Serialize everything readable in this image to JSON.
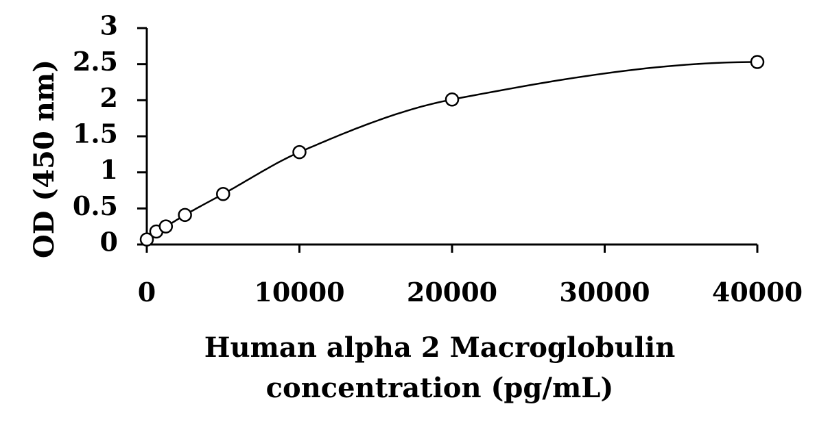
{
  "chart_data": {
    "type": "scatter",
    "title": "",
    "xlabel": [
      "Human alpha 2 Macroglobulin",
      "concentration (pg/mL)"
    ],
    "ylabel": "OD (450 nm)",
    "xlim": [
      0,
      40000
    ],
    "ylim": [
      0,
      3
    ],
    "xticks": [
      0,
      10000,
      20000,
      30000,
      40000
    ],
    "xtick_labels": [
      "0",
      "10000",
      "20000",
      "30000",
      "40000"
    ],
    "yticks": [
      0,
      0.5,
      1,
      1.5,
      2,
      2.5,
      3
    ],
    "ytick_labels": [
      "0",
      "0.5",
      "1",
      "1.5",
      "2",
      "2.5",
      "3"
    ],
    "grid": false,
    "legend": "none",
    "series": [
      {
        "marker": "open-circle",
        "fit_line": "smooth-curve",
        "x": [
          0,
          625,
          1250,
          2500,
          5000,
          10000,
          20000,
          40000
        ],
        "y": [
          0.07,
          0.18,
          0.25,
          0.41,
          0.7,
          1.28,
          2.01,
          2.53
        ]
      }
    ],
    "colors": {
      "line": "#000000",
      "marker_fill": "#ffffff",
      "background": "#ffffff"
    }
  }
}
